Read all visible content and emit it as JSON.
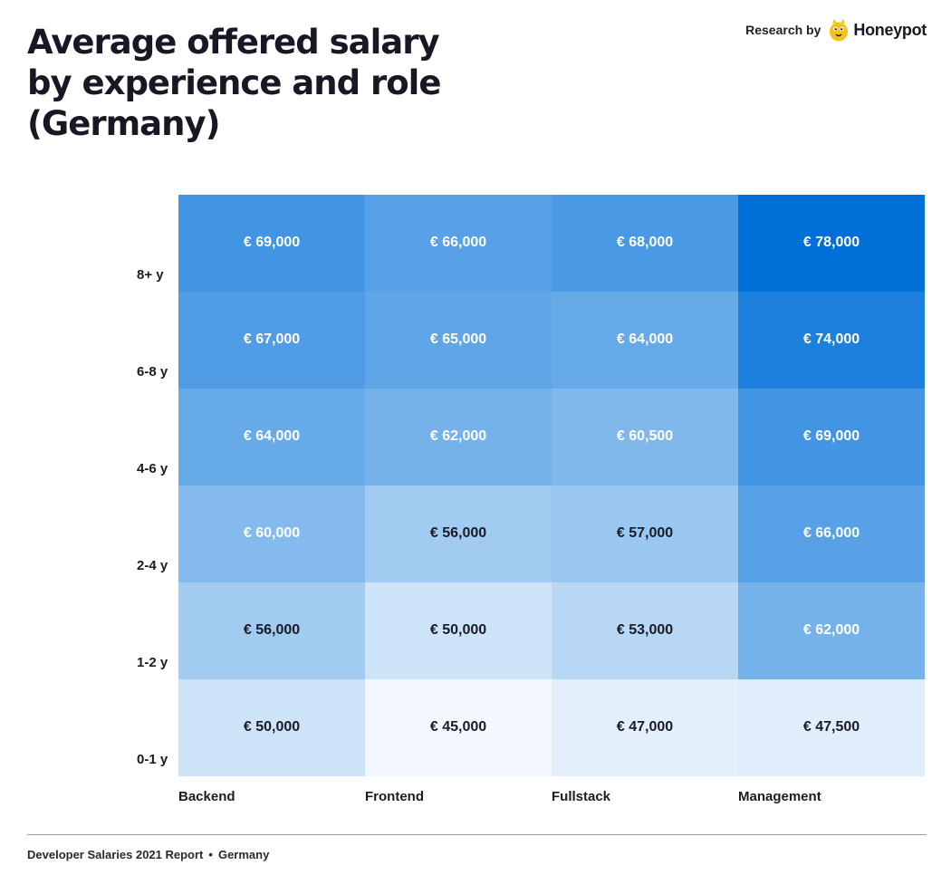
{
  "page": {
    "title_lines": [
      "Average offered salary",
      "by experience and role",
      "(Germany)"
    ],
    "research_label": "Research by",
    "brand_name": "Honeypot",
    "footer_report": "Developer Salaries 2021 Report",
    "footer_separator": "•",
    "footer_country": "Germany"
  },
  "colors": {
    "heat_low": "#f2f8fe",
    "heat_high": "#0070d8",
    "label_dark": "#1b1b26",
    "label_light": "#ffffff",
    "logo_yellow": "#f6c21a"
  },
  "chart_data": {
    "type": "heatmap",
    "title": "Average offered salary by experience and role (Germany)",
    "columns": [
      "Backend",
      "Frontend",
      "Fullstack",
      "Management"
    ],
    "rows": [
      "8+ y",
      "6-8 y",
      "4-6 y",
      "2-4 y",
      "1-2 y",
      "0-1 y"
    ],
    "values": [
      [
        69000,
        66000,
        68000,
        78000
      ],
      [
        67000,
        65000,
        64000,
        74000
      ],
      [
        64000,
        62000,
        60500,
        69000
      ],
      [
        60000,
        56000,
        57000,
        66000
      ],
      [
        56000,
        50000,
        53000,
        62000
      ],
      [
        50000,
        45000,
        47000,
        47500
      ]
    ],
    "labels": [
      [
        "€ 69,000",
        "€ 66,000",
        "€ 68,000",
        "€ 78,000"
      ],
      [
        "€ 67,000",
        "€ 65,000",
        "€ 64,000",
        "€ 74,000"
      ],
      [
        "€ 64,000",
        "€ 62,000",
        "€ 60,500",
        "€ 69,000"
      ],
      [
        "€ 60,000",
        "€ 56,000",
        "€ 57,000",
        "€ 66,000"
      ],
      [
        "€ 56,000",
        "€ 50,000",
        "€ 53,000",
        "€ 62,000"
      ],
      [
        "€ 50,000",
        "€ 45,000",
        "€ 47,000",
        "€ 47,500"
      ]
    ],
    "value_range": [
      45000,
      78000
    ],
    "light_label_threshold": 58000,
    "grid": false,
    "legend": "none"
  }
}
